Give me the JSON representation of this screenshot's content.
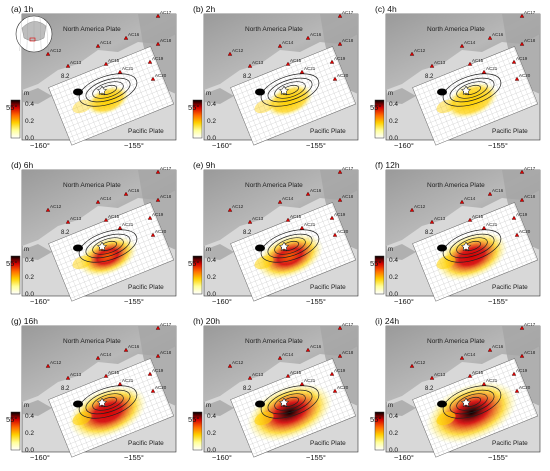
{
  "panels": [
    {
      "id": "a",
      "label": "(a) 1h",
      "level": 0.14
    },
    {
      "id": "b",
      "label": "(b) 2h",
      "level": 0.22
    },
    {
      "id": "c",
      "label": "(c) 4h",
      "level": 0.32
    },
    {
      "id": "d",
      "label": "(d) 6h",
      "level": 0.42
    },
    {
      "id": "e",
      "label": "(e) 9h",
      "level": 0.55
    },
    {
      "id": "f",
      "label": "(f) 12h",
      "level": 0.63
    },
    {
      "id": "g",
      "label": "(g) 16h",
      "level": 0.74
    },
    {
      "id": "h",
      "label": "(h) 20h",
      "level": 0.86
    },
    {
      "id": "i",
      "label": "(i) 24h",
      "level": 0.96
    }
  ],
  "map_labels": {
    "north_plate": "North America Plate",
    "pacific_plate": "Pacific Plate",
    "magnitude": "8.2",
    "lat_label": "55°",
    "lon_labels": [
      "−160°",
      "−155°"
    ]
  },
  "colorbar": {
    "title": "m",
    "ticks": [
      "0.4",
      "0.2",
      "0.0"
    ],
    "colors": [
      "#000000",
      "#d40000",
      "#ff6a00",
      "#ffd000",
      "#ffff99",
      "#ffffff"
    ]
  },
  "station_labels": [
    "AC12",
    "AC13",
    "AC14",
    "AC15",
    "AC16",
    "AC17",
    "AC18",
    "AC19",
    "AC20",
    "AC21"
  ],
  "inset_locator": true
}
